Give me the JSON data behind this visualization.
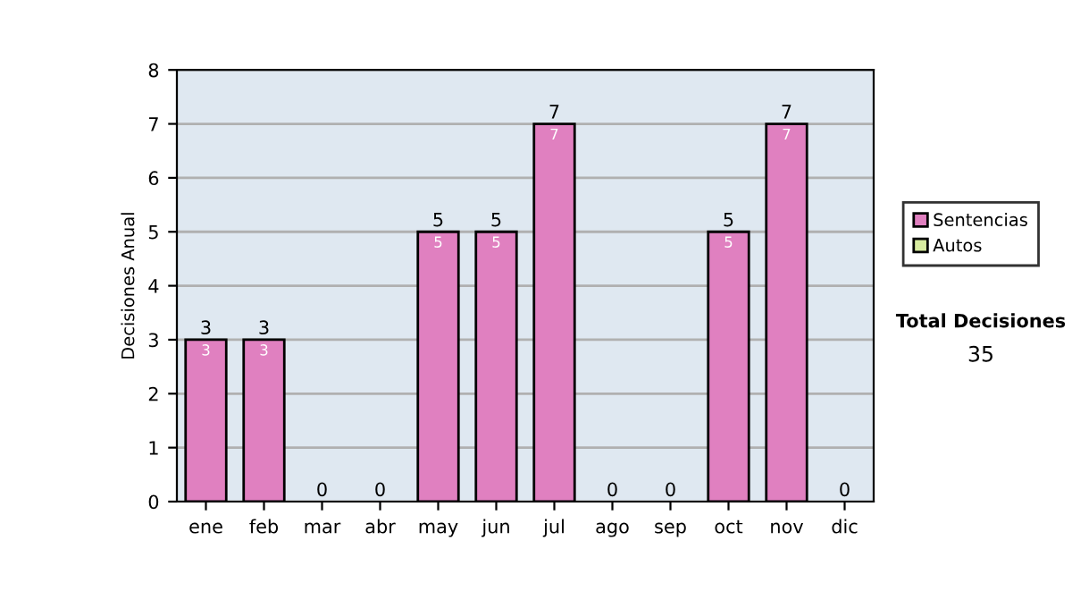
{
  "chart_data": {
    "type": "bar",
    "stacked": true,
    "ylabel": "Decisiones Anual",
    "categories": [
      "ene",
      "feb",
      "mar",
      "abr",
      "may",
      "jun",
      "jul",
      "ago",
      "sep",
      "oct",
      "nov",
      "dic"
    ],
    "series": [
      {
        "name": "Sentencias",
        "color": "#e080c0",
        "values": [
          3,
          3,
          0,
          0,
          5,
          5,
          7,
          0,
          0,
          5,
          7,
          0
        ],
        "value_labels": [
          "3",
          "3",
          null,
          null,
          "5",
          "5",
          "7",
          null,
          null,
          "5",
          "7",
          null
        ]
      },
      {
        "name": "Autos",
        "color": "#d8eca0",
        "values": [
          0,
          0,
          0,
          0,
          0,
          0,
          0,
          0,
          0,
          0,
          0,
          0
        ]
      }
    ],
    "totals": [
      "3",
      "3",
      "0",
      "0",
      "5",
      "5",
      "7",
      "0",
      "0",
      "5",
      "7",
      "0"
    ],
    "ylim": [
      0,
      8
    ],
    "yticks": [
      0,
      1,
      2,
      3,
      4,
      5,
      6,
      7,
      8
    ],
    "grid": "y",
    "legend": "right",
    "annotations": [
      "Total Decisiones",
      "35"
    ]
  }
}
